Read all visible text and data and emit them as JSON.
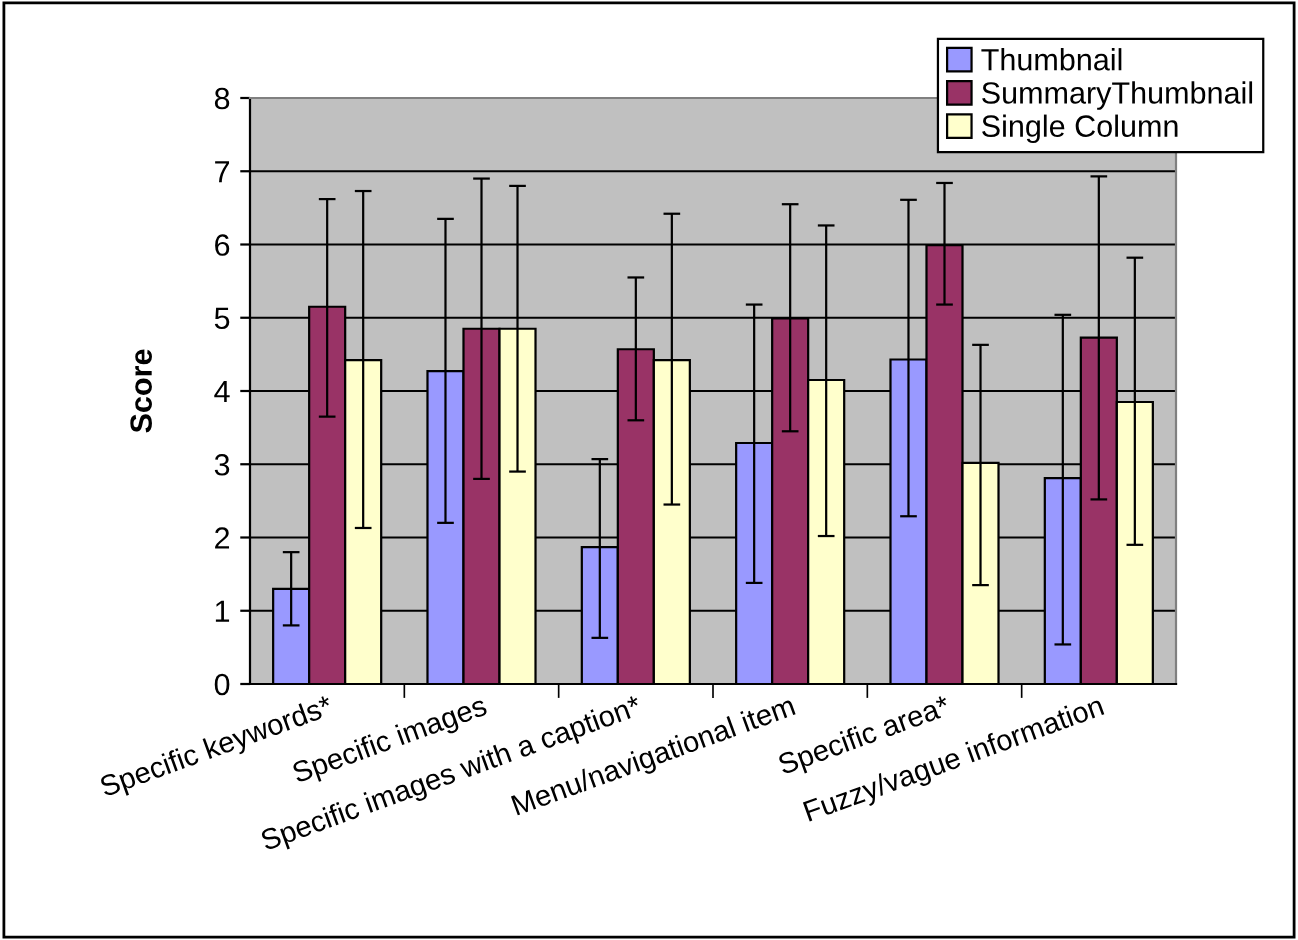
{
  "chart_data": {
    "type": "bar",
    "ylabel": "Score",
    "categories": [
      "Specific keywords*",
      "Specific images",
      "Specific images with a caption*",
      "Menu/navigational item",
      "Specific area*",
      "Fuzzy/vague information"
    ],
    "series": [
      {
        "name": "Thumbnail",
        "color": "#9999ff",
        "values": [
          1.3,
          4.27,
          1.87,
          3.29,
          4.43,
          2.81
        ],
        "errors": [
          [
            0.8,
            1.8
          ],
          [
            2.2,
            6.35
          ],
          [
            0.63,
            3.07
          ],
          [
            1.38,
            5.18
          ],
          [
            2.29,
            6.61
          ],
          [
            0.54,
            5.04
          ]
        ]
      },
      {
        "name": "SummaryThumbnail",
        "color": "#993366",
        "values": [
          5.15,
          4.85,
          4.57,
          4.99,
          5.99,
          4.73
        ],
        "errors": [
          [
            3.65,
            6.62
          ],
          [
            2.8,
            6.9
          ],
          [
            3.6,
            5.55
          ],
          [
            3.45,
            6.55
          ],
          [
            5.18,
            6.84
          ],
          [
            2.52,
            6.93
          ]
        ]
      },
      {
        "name": "Single Column",
        "color": "#ffffcc",
        "values": [
          4.42,
          4.85,
          4.42,
          4.15,
          3.02,
          3.85
        ],
        "errors": [
          [
            2.13,
            6.73
          ],
          [
            2.9,
            6.8
          ],
          [
            2.45,
            6.42
          ],
          [
            2.02,
            6.26
          ],
          [
            1.35,
            4.63
          ],
          [
            1.9,
            5.82
          ]
        ]
      }
    ],
    "ylim": [
      0,
      8
    ],
    "yticks": [
      0,
      1,
      2,
      3,
      4,
      5,
      6,
      7,
      8
    ],
    "grid": "y",
    "legend": "top right"
  }
}
